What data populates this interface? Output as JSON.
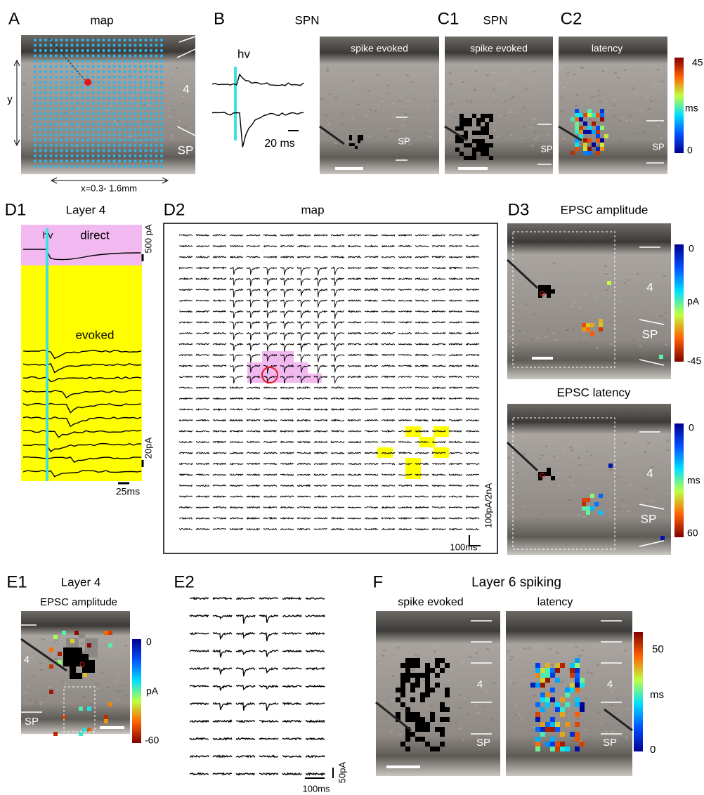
{
  "panels": {
    "A": {
      "label": "A",
      "title": "map",
      "y_axis": "y",
      "layer": "4",
      "sp": "SP",
      "x_range": "x=0.3- 1.6mm"
    },
    "B": {
      "label": "B",
      "title": "SPN",
      "stimulus": "hv",
      "time_scale": "20 ms",
      "image_title": "spike evoked",
      "sp": "SP"
    },
    "C1": {
      "label": "C1",
      "title": "SPN",
      "image_title": "spike evoked",
      "sp": "SP"
    },
    "C2": {
      "label": "C2",
      "image_title": "latency",
      "sp": "SP",
      "colorbar": {
        "top": 45,
        "unit": "ms",
        "bottom": 0
      }
    },
    "D1": {
      "label": "D1",
      "title": "Layer 4",
      "stimulus": "hv",
      "direct": "direct",
      "direct_scale": "500 pA",
      "evoked": "evoked",
      "evoked_scale": "20pA",
      "time_scale": "25ms"
    },
    "D2": {
      "label": "D2",
      "title": "map",
      "amp_scale": "100pA/2nA",
      "time_scale": "100ms"
    },
    "D3": {
      "label": "D3",
      "amplitude": {
        "title": "EPSC amplitude",
        "layer": "4",
        "sp": "SP",
        "colorbar": {
          "top": 0,
          "unit": "pA",
          "bottom": -45
        }
      },
      "latency": {
        "title": "EPSC latency",
        "layer": "4",
        "sp": "SP",
        "colorbar": {
          "top": 0,
          "unit": "ms",
          "bottom": 60
        }
      }
    },
    "E1": {
      "label": "E1",
      "title": "Layer 4",
      "subtitle": "EPSC amplitude",
      "layer": "4",
      "sp": "SP",
      "colorbar": {
        "top": 0,
        "unit": "pA",
        "bottom": -60
      }
    },
    "E2": {
      "label": "E2",
      "amp_scale": "50pA",
      "time_scale": "100ms"
    },
    "F": {
      "label": "F",
      "title": "Layer 6 spiking",
      "left": {
        "title": "spike evoked",
        "layer": "4",
        "sp": "SP"
      },
      "right": {
        "title": "latency",
        "layer": "4",
        "sp": "SP"
      },
      "colorbar": {
        "top": 50,
        "unit": "ms",
        "bottom": 0
      }
    }
  }
}
